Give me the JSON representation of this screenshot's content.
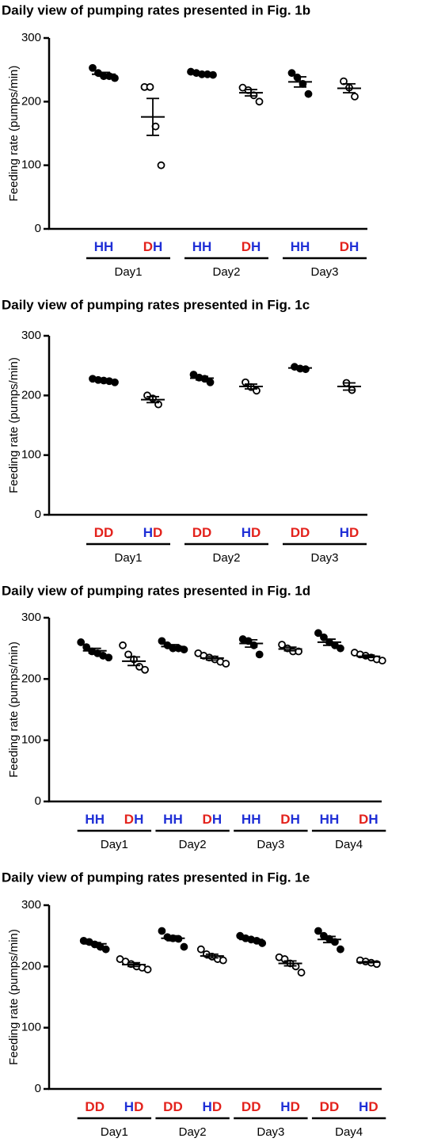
{
  "chart_data": [
    {
      "type": "dot",
      "title": "Daily view of pumping rates presented in Fig. 1b",
      "y_label": "Feeding rate (pumps/min)",
      "ylim": [
        0,
        300
      ],
      "yticks": [
        0,
        100,
        200,
        300
      ],
      "letter_colors": {
        "H": "#1f2fd6",
        "D": "#e3221c"
      },
      "groups": [
        {
          "label": "Day1",
          "items": [
            {
              "label": "HH",
              "marker": "filled",
              "points": [
                253,
                245,
                240,
                240,
                237
              ],
              "mean": 243,
              "sem": 3
            },
            {
              "label": "DH",
              "marker": "open",
              "points": [
                223,
                223,
                161,
                100
              ],
              "mean": 176,
              "sem": 29
            }
          ]
        },
        {
          "label": "Day2",
          "items": [
            {
              "label": "HH",
              "marker": "filled",
              "points": [
                247,
                245,
                243,
                243,
                242
              ],
              "mean": 244,
              "sem": 1
            },
            {
              "label": "DH",
              "marker": "open",
              "points": [
                222,
                218,
                210,
                200
              ],
              "mean": 214,
              "sem": 5
            }
          ]
        },
        {
          "label": "Day3",
          "items": [
            {
              "label": "HH",
              "marker": "filled",
              "points": [
                245,
                238,
                228,
                212
              ],
              "mean": 231,
              "sem": 8
            },
            {
              "label": "DH",
              "marker": "open",
              "points": [
                232,
                222,
                208
              ],
              "mean": 221,
              "sem": 7
            }
          ]
        }
      ]
    },
    {
      "type": "dot",
      "title": "Daily view of pumping rates presented in Fig. 1c",
      "y_label": "Feeding rate (pumps/min)",
      "ylim": [
        0,
        300
      ],
      "yticks": [
        0,
        100,
        200,
        300
      ],
      "letter_colors": {
        "H": "#1f2fd6",
        "D": "#e3221c"
      },
      "groups": [
        {
          "label": "Day1",
          "items": [
            {
              "label": "DD",
              "marker": "filled",
              "points": [
                228,
                226,
                225,
                224,
                222
              ],
              "mean": 225,
              "sem": 1
            },
            {
              "label": "HD",
              "marker": "open",
              "points": [
                200,
                195,
                185
              ],
              "mean": 193,
              "sem": 5
            }
          ]
        },
        {
          "label": "Day2",
          "items": [
            {
              "label": "DD",
              "marker": "filled",
              "points": [
                235,
                230,
                228,
                222
              ],
              "mean": 229,
              "sem": 3
            },
            {
              "label": "HD",
              "marker": "open",
              "points": [
                222,
                214,
                208
              ],
              "mean": 215,
              "sem": 4
            }
          ]
        },
        {
          "label": "Day3",
          "items": [
            {
              "label": "DD",
              "marker": "filled",
              "points": [
                248,
                245,
                244
              ],
              "mean": 246,
              "sem": 2
            },
            {
              "label": "HD",
              "marker": "open",
              "points": [
                221,
                209
              ],
              "mean": 215,
              "sem": 6
            }
          ]
        }
      ]
    },
    {
      "type": "dot",
      "title": "Daily view of pumping rates presented in Fig. 1d",
      "y_label": "Feeding rate (pumps/min)",
      "ylim": [
        0,
        300
      ],
      "yticks": [
        0,
        100,
        200,
        300
      ],
      "letter_colors": {
        "H": "#1f2fd6",
        "D": "#e3221c"
      },
      "groups": [
        {
          "label": "Day1",
          "items": [
            {
              "label": "HH",
              "marker": "filled",
              "points": [
                260,
                252,
                245,
                242,
                238,
                235
              ],
              "mean": 246,
              "sem": 4
            },
            {
              "label": "DH",
              "marker": "open",
              "points": [
                255,
                240,
                232,
                220,
                215
              ],
              "mean": 229,
              "sem": 7
            }
          ]
        },
        {
          "label": "Day2",
          "items": [
            {
              "label": "HH",
              "marker": "filled",
              "points": [
                262,
                255,
                250,
                250,
                248
              ],
              "mean": 253,
              "sem": 3
            },
            {
              "label": "DH",
              "marker": "open",
              "points": [
                242,
                238,
                235,
                232,
                228,
                225
              ],
              "mean": 234,
              "sem": 3
            }
          ]
        },
        {
          "label": "Day3",
          "items": [
            {
              "label": "HH",
              "marker": "filled",
              "points": [
                265,
                262,
                255,
                240
              ],
              "mean": 258,
              "sem": 6
            },
            {
              "label": "DH",
              "marker": "open",
              "points": [
                256,
                250,
                245,
                245
              ],
              "mean": 249,
              "sem": 3
            }
          ]
        },
        {
          "label": "Day4",
          "items": [
            {
              "label": "HH",
              "marker": "filled",
              "points": [
                275,
                268,
                260,
                255,
                250
              ],
              "mean": 260,
              "sem": 5
            },
            {
              "label": "DH",
              "marker": "open",
              "points": [
                243,
                240,
                238,
                235,
                232,
                230
              ],
              "mean": 237,
              "sem": 2
            }
          ]
        }
      ]
    },
    {
      "type": "dot",
      "title": "Daily view of pumping rates presented in Fig. 1e",
      "y_label": "Feeding rate (pumps/min)",
      "ylim": [
        0,
        300
      ],
      "yticks": [
        0,
        100,
        200,
        300
      ],
      "letter_colors": {
        "H": "#1f2fd6",
        "D": "#e3221c"
      },
      "groups": [
        {
          "label": "Day1",
          "items": [
            {
              "label": "DD",
              "marker": "filled",
              "points": [
                242,
                240,
                236,
                232,
                228
              ],
              "mean": 237,
              "sem": 2
            },
            {
              "label": "HD",
              "marker": "open",
              "points": [
                212,
                208,
                204,
                200,
                198,
                195
              ],
              "mean": 203,
              "sem": 3
            }
          ]
        },
        {
          "label": "Day2",
          "items": [
            {
              "label": "DD",
              "marker": "filled",
              "points": [
                258,
                248,
                246,
                245,
                232
              ],
              "mean": 246,
              "sem": 4
            },
            {
              "label": "HD",
              "marker": "open",
              "points": [
                228,
                220,
                216,
                212,
                210
              ],
              "mean": 217,
              "sem": 3
            }
          ]
        },
        {
          "label": "Day3",
          "items": [
            {
              "label": "DD",
              "marker": "filled",
              "points": [
                250,
                246,
                244,
                242,
                238
              ],
              "mean": 244,
              "sem": 2
            },
            {
              "label": "HD",
              "marker": "open",
              "points": [
                215,
                212,
                205,
                200,
                190
              ],
              "mean": 205,
              "sem": 4
            }
          ]
        },
        {
          "label": "Day4",
          "items": [
            {
              "label": "DD",
              "marker": "filled",
              "points": [
                258,
                250,
                245,
                240,
                228
              ],
              "mean": 244,
              "sem": 5
            },
            {
              "label": "HD",
              "marker": "open",
              "points": [
                210,
                208,
                206,
                204
              ],
              "mean": 207,
              "sem": 1
            }
          ]
        }
      ]
    }
  ]
}
